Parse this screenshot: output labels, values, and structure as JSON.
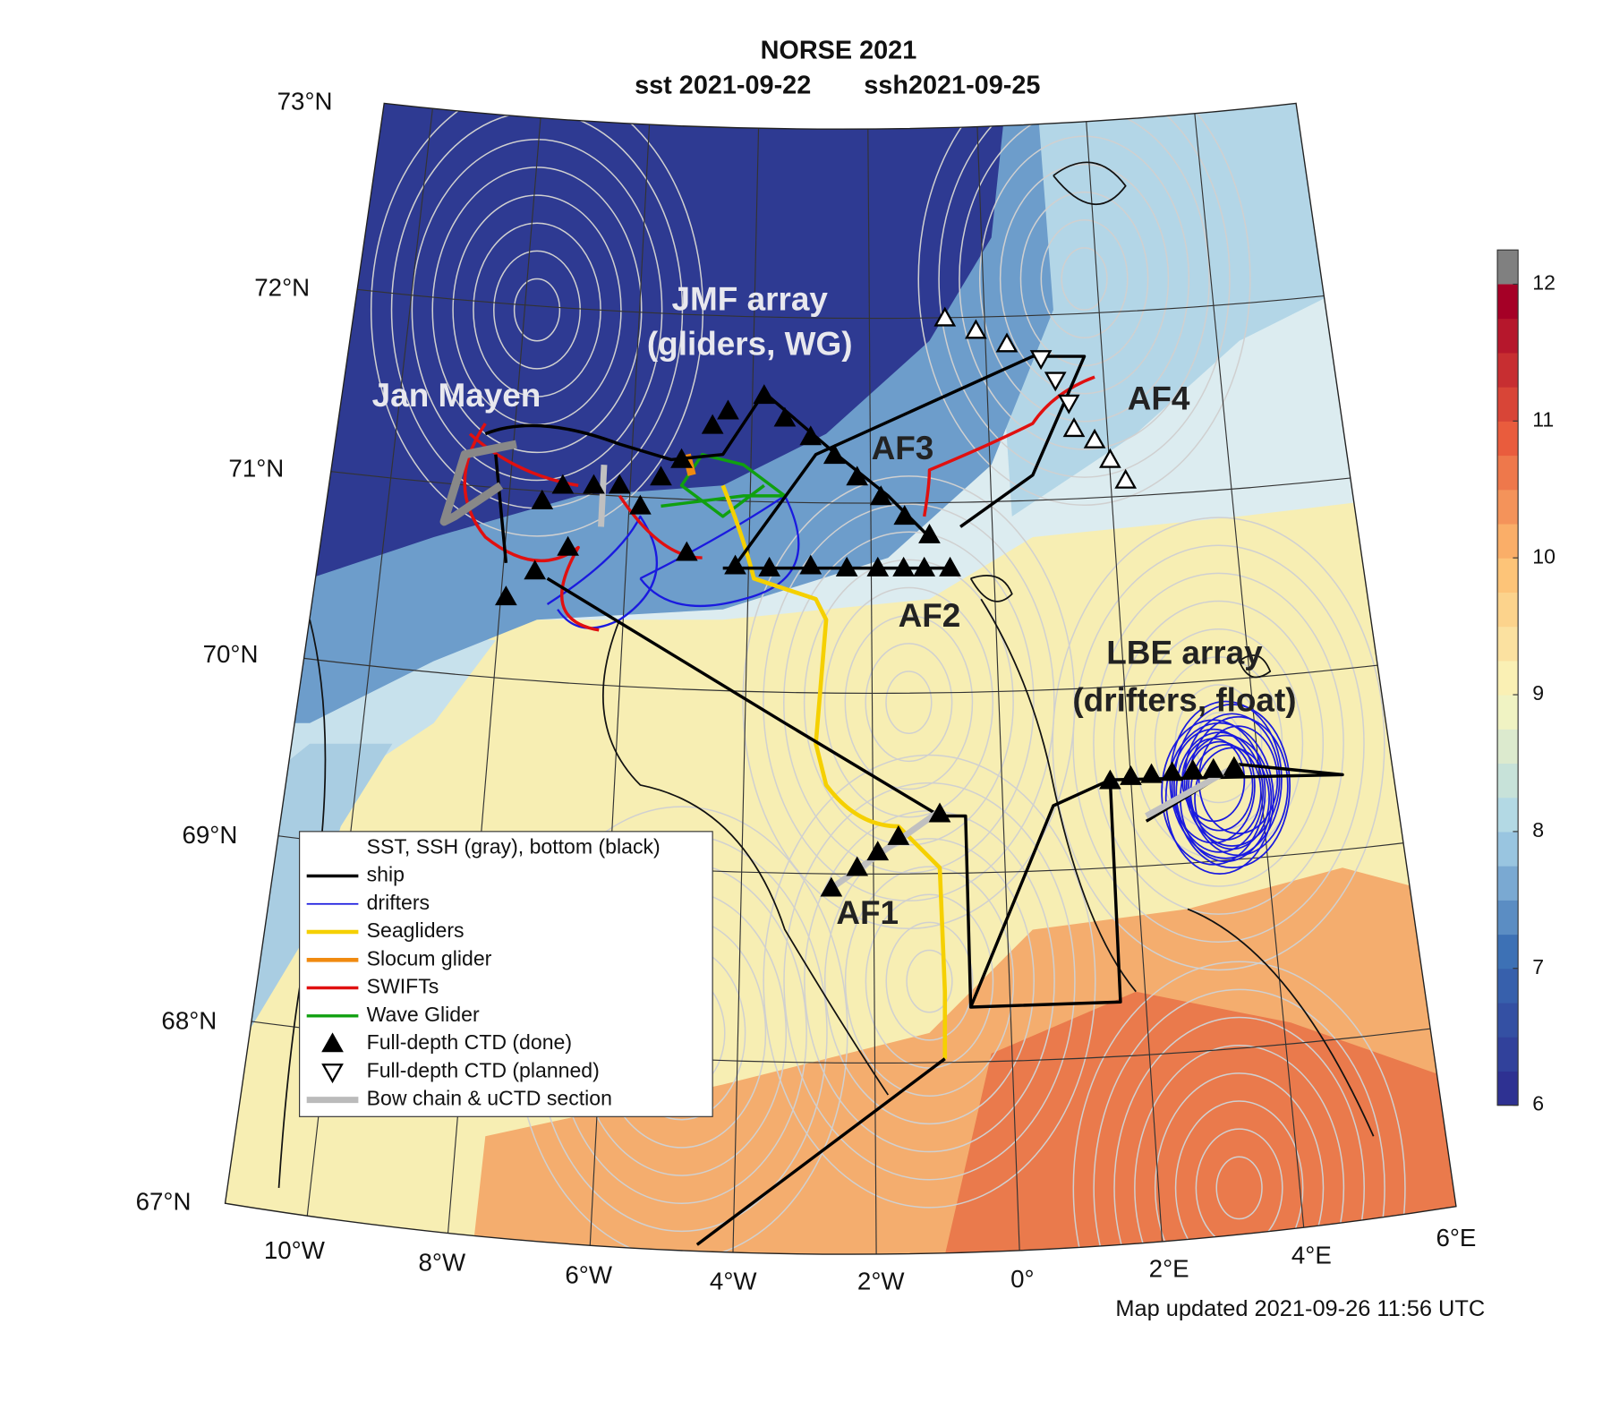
{
  "title": {
    "line1": "NORSE 2021",
    "sst": "sst 2021-09-22",
    "ssh": "ssh2021-09-25"
  },
  "latitude_labels": [
    "73°N",
    "72°N",
    "71°N",
    "70°N",
    "69°N",
    "68°N",
    "67°N"
  ],
  "longitude_labels": [
    "10°W",
    "8°W",
    "6°W",
    "4°W",
    "2°W",
    "0°",
    "2°E",
    "4°E",
    "6°E"
  ],
  "annotations": [
    "JMF array",
    "(gliders, WG)",
    "Jan Mayen",
    "AF3",
    "AF4",
    "AF2",
    "AF1",
    "LBE array",
    "(drifters, float)"
  ],
  "legend": {
    "title": "SST, SSH (gray), bottom (black)",
    "items": [
      {
        "label": "ship",
        "color": "#000000",
        "width": 3
      },
      {
        "label": "drifters",
        "color": "#1a1adf",
        "width": 1.5
      },
      {
        "label": "Seagliders",
        "color": "#f5d000",
        "width": 4
      },
      {
        "label": "Slocum glider",
        "color": "#f08a10",
        "width": 4
      },
      {
        "label": "SWIFTs",
        "color": "#e01010",
        "width": 3
      },
      {
        "label": "Wave Glider",
        "color": "#10a010",
        "width": 3
      },
      {
        "label": "Full-depth CTD (done)",
        "color": "#000000",
        "marker": "filled-up"
      },
      {
        "label": "Full-depth CTD (planned)",
        "color": "#000000",
        "marker": "open-down"
      },
      {
        "label": "Bow chain & uCTD section",
        "color": "#bbbbbb",
        "width": 6
      }
    ]
  },
  "colorbar": {
    "lim": [
      6,
      12.25
    ],
    "ticks": [
      6,
      7,
      8,
      9,
      10,
      11,
      12
    ]
  },
  "footer": "Map updated 2021-09-26 11:56 UTC"
}
